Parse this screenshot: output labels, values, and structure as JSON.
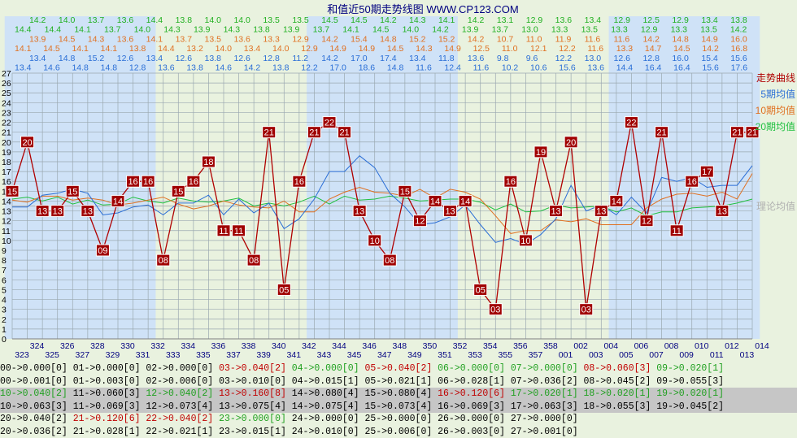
{
  "title": "和值近50期走势线图 WWW.CP123.COM",
  "legend": [
    {
      "label": "走势曲线",
      "color": "#b00000"
    },
    {
      "label": "5期均值",
      "color": "#2a6ed6"
    },
    {
      "label": "10期均值",
      "color": "#e07020"
    },
    {
      "label": "20期均值",
      "color": "#20c040"
    },
    {
      "label": "理论均值",
      "color": "#b0b0b0"
    }
  ],
  "header_rows": [
    {
      "color": "#20b020",
      "values": [
        "14.2",
        "14.0",
        "13.7",
        "13.6",
        "14.4",
        "13.8",
        "14.0",
        "14.0",
        "13.5",
        "13.5",
        "14.5",
        "14.5",
        "14.2",
        "14.3",
        "14.1",
        "14.2",
        "13.1",
        "12.9",
        "13.6",
        "13.4",
        "12.9",
        "12.5",
        "12.9",
        "13.4",
        "13.8"
      ]
    },
    {
      "color": "#20b020",
      "values": [
        "14.4",
        "14.4",
        "14.1",
        "13.7",
        "14.0",
        "14.3",
        "13.9",
        "14.3",
        "13.8",
        "13.9",
        "13.7",
        "14.1",
        "14.5",
        "14.0",
        "14.2",
        "13.9",
        "13.7",
        "13.0",
        "13.3",
        "13.5",
        "13.3",
        "12.9",
        "13.3",
        "13.5",
        "14.2"
      ]
    },
    {
      "color": "#e07020",
      "values": [
        "13.9",
        "14.5",
        "14.3",
        "13.6",
        "14.1",
        "13.7",
        "13.5",
        "13.6",
        "13.3",
        "12.9",
        "14.2",
        "15.4",
        "14.8",
        "15.2",
        "15.2",
        "14.2",
        "10.7",
        "11.0",
        "11.9",
        "11.6",
        "11.6",
        "14.2",
        "14.8",
        "14.9",
        "16.0"
      ]
    },
    {
      "color": "#e07020",
      "values": [
        "14.1",
        "14.5",
        "14.1",
        "14.1",
        "13.8",
        "14.4",
        "13.2",
        "14.0",
        "13.4",
        "14.0",
        "12.9",
        "14.9",
        "14.9",
        "14.5",
        "14.3",
        "14.9",
        "12.5",
        "11.0",
        "12.1",
        "12.2",
        "11.6",
        "13.3",
        "14.7",
        "14.5",
        "14.2",
        "16.8"
      ]
    },
    {
      "color": "#2a6ed6",
      "values": [
        "13.4",
        "14.8",
        "15.2",
        "12.6",
        "13.4",
        "12.6",
        "13.8",
        "12.6",
        "12.8",
        "11.2",
        "14.2",
        "17.0",
        "17.4",
        "13.4",
        "11.8",
        "13.6",
        "9.8",
        "9.6",
        "12.2",
        "13.0",
        "12.6",
        "12.8",
        "16.0",
        "15.4",
        "15.6"
      ]
    },
    {
      "color": "#2a6ed6",
      "values": [
        "13.4",
        "14.6",
        "14.8",
        "14.8",
        "12.8",
        "13.6",
        "13.8",
        "14.6",
        "14.2",
        "13.8",
        "12.2",
        "17.0",
        "18.6",
        "14.8",
        "11.6",
        "12.4",
        "11.6",
        "10.2",
        "10.6",
        "15.6",
        "13.6",
        "14.4",
        "16.4",
        "16.4",
        "15.6",
        "17.6"
      ]
    }
  ],
  "stats_rows": [
    {
      "band": false,
      "cells": [
        {
          "text": "00->0.000[0]",
          "color": "#000000"
        },
        {
          "text": "01->0.000[0]",
          "color": "#000000"
        },
        {
          "text": "02->0.000[0]",
          "color": "#000000"
        },
        {
          "text": "03->0.040[2]",
          "color": "#c00000"
        },
        {
          "text": "04->0.000[0]",
          "color": "#20a020"
        },
        {
          "text": "05->0.040[2]",
          "color": "#c00000"
        },
        {
          "text": "06->0.000[0]",
          "color": "#20a020"
        },
        {
          "text": "07->0.000[0]",
          "color": "#20a020"
        },
        {
          "text": "08->0.060[3]",
          "color": "#c00000"
        },
        {
          "text": "09->0.020[1]",
          "color": "#20a020"
        }
      ]
    },
    {
      "band": false,
      "cells": [
        {
          "text": "00->0.001[0]",
          "color": "#000000"
        },
        {
          "text": "01->0.003[0]",
          "color": "#000000"
        },
        {
          "text": "02->0.006[0]",
          "color": "#000000"
        },
        {
          "text": "03->0.010[0]",
          "color": "#000000"
        },
        {
          "text": "04->0.015[1]",
          "color": "#000000"
        },
        {
          "text": "05->0.021[1]",
          "color": "#000000"
        },
        {
          "text": "06->0.028[1]",
          "color": "#000000"
        },
        {
          "text": "07->0.036[2]",
          "color": "#000000"
        },
        {
          "text": "08->0.045[2]",
          "color": "#000000"
        },
        {
          "text": "09->0.055[3]",
          "color": "#000000"
        }
      ]
    },
    {
      "band": true,
      "cells": [
        {
          "text": "10->0.040[2]",
          "color": "#20a020"
        },
        {
          "text": "11->0.060[3]",
          "color": "#000000"
        },
        {
          "text": "12->0.040[2]",
          "color": "#20a020"
        },
        {
          "text": "13->0.160[8]",
          "color": "#c00000"
        },
        {
          "text": "14->0.080[4]",
          "color": "#000000"
        },
        {
          "text": "15->0.080[4]",
          "color": "#000000"
        },
        {
          "text": "16->0.120[6]",
          "color": "#c00000"
        },
        {
          "text": "17->0.020[1]",
          "color": "#20a020"
        },
        {
          "text": "18->0.020[1]",
          "color": "#20a020"
        },
        {
          "text": "19->0.020[1]",
          "color": "#20a020"
        }
      ]
    },
    {
      "band": true,
      "cells": [
        {
          "text": "10->0.063[3]",
          "color": "#000000"
        },
        {
          "text": "11->0.069[3]",
          "color": "#000000"
        },
        {
          "text": "12->0.073[4]",
          "color": "#000000"
        },
        {
          "text": "13->0.075[4]",
          "color": "#000000"
        },
        {
          "text": "14->0.075[4]",
          "color": "#000000"
        },
        {
          "text": "15->0.073[4]",
          "color": "#000000"
        },
        {
          "text": "16->0.069[3]",
          "color": "#000000"
        },
        {
          "text": "17->0.063[3]",
          "color": "#000000"
        },
        {
          "text": "18->0.055[3]",
          "color": "#000000"
        },
        {
          "text": "19->0.045[2]",
          "color": "#000000"
        }
      ]
    },
    {
      "band": false,
      "cells": [
        {
          "text": "20->0.040[2]",
          "color": "#000000"
        },
        {
          "text": "21->0.120[6]",
          "color": "#c00000"
        },
        {
          "text": "22->0.040[2]",
          "color": "#c00000"
        },
        {
          "text": "23->0.000[0]",
          "color": "#20a020"
        },
        {
          "text": "24->0.000[0]",
          "color": "#000000"
        },
        {
          "text": "25->0.000[0]",
          "color": "#000000"
        },
        {
          "text": "26->0.000[0]",
          "color": "#000000"
        },
        {
          "text": "27->0.000[0]",
          "color": "#000000"
        }
      ]
    },
    {
      "band": false,
      "cells": [
        {
          "text": "20->0.036[2]",
          "color": "#000000"
        },
        {
          "text": "21->0.028[1]",
          "color": "#000000"
        },
        {
          "text": "22->0.021[1]",
          "color": "#000000"
        },
        {
          "text": "23->0.015[1]",
          "color": "#000000"
        },
        {
          "text": "24->0.010[0]",
          "color": "#000000"
        },
        {
          "text": "25->0.006[0]",
          "color": "#000000"
        },
        {
          "text": "26->0.003[0]",
          "color": "#000000"
        },
        {
          "text": "27->0.001[0]",
          "color": "#000000"
        }
      ]
    }
  ],
  "chart_data": {
    "type": "line",
    "title": "和值近50期走势线图 WWW.CP123.COM",
    "x": [
      "323",
      "324",
      "325",
      "326",
      "327",
      "328",
      "329",
      "330",
      "331",
      "332",
      "333",
      "334",
      "335",
      "336",
      "337",
      "338",
      "339",
      "340",
      "341",
      "342",
      "343",
      "344",
      "345",
      "346",
      "347",
      "348",
      "349",
      "350",
      "351",
      "352",
      "353",
      "354",
      "355",
      "356",
      "357",
      "358",
      "001",
      "002",
      "003",
      "004",
      "005",
      "006",
      "007",
      "008",
      "009",
      "010",
      "011",
      "012",
      "013",
      "014"
    ],
    "ylim": [
      0,
      27
    ],
    "grid": true,
    "legend_position": "right",
    "series": [
      {
        "name": "走势曲线",
        "color": "#b00000",
        "values": [
          15,
          20,
          13,
          13,
          15,
          13,
          9,
          14,
          16,
          16,
          8,
          15,
          16,
          18,
          11,
          11,
          8,
          21,
          5,
          16,
          21,
          22,
          21,
          13,
          10,
          8,
          15,
          12,
          14,
          13,
          14,
          5,
          3,
          16,
          10,
          19,
          13,
          20,
          3,
          13,
          14,
          22,
          12,
          21,
          11,
          16,
          17,
          13,
          21,
          21
        ]
      },
      {
        "name": "5期均值",
        "color": "#2a6ed6",
        "values": [
          13.4,
          13.4,
          14.6,
          14.8,
          15.2,
          14.8,
          12.6,
          12.8,
          13.4,
          13.6,
          12.6,
          13.8,
          13.8,
          14.6,
          12.6,
          14.2,
          12.8,
          13.8,
          11.2,
          12.2,
          14.2,
          17.0,
          17.0,
          18.6,
          17.4,
          14.8,
          13.4,
          11.6,
          11.8,
          12.4,
          13.6,
          11.6,
          9.8,
          10.2,
          9.6,
          10.6,
          12.2,
          15.6,
          13.0,
          13.6,
          12.6,
          14.4,
          12.8,
          16.4,
          16.0,
          16.4,
          15.4,
          15.6,
          15.6,
          17.6
        ]
      },
      {
        "name": "10期均值",
        "color": "#e07020",
        "values": [
          14.1,
          13.9,
          14.5,
          14.5,
          14.1,
          14.3,
          14.1,
          13.6,
          13.8,
          14.1,
          14.4,
          13.7,
          13.2,
          13.5,
          14.0,
          13.6,
          13.4,
          13.3,
          14.0,
          12.9,
          12.9,
          14.2,
          14.9,
          15.4,
          14.9,
          14.8,
          14.5,
          15.2,
          14.3,
          15.2,
          14.9,
          14.2,
          12.5,
          10.7,
          11.0,
          11.0,
          12.1,
          11.9,
          12.2,
          11.6,
          11.6,
          11.6,
          13.3,
          14.2,
          14.7,
          14.8,
          14.5,
          14.9,
          14.2,
          16.8
        ]
      },
      {
        "name": "20期均值",
        "color": "#20c040",
        "values": [
          14.2,
          14.4,
          14.0,
          14.4,
          13.7,
          14.1,
          13.6,
          13.7,
          14.4,
          14.0,
          13.8,
          14.3,
          14.0,
          13.9,
          14.0,
          14.3,
          13.5,
          13.8,
          13.5,
          13.9,
          14.5,
          13.7,
          14.5,
          14.1,
          14.2,
          14.5,
          14.3,
          14.0,
          14.1,
          14.2,
          14.2,
          13.9,
          13.1,
          13.7,
          12.9,
          13.0,
          13.6,
          13.3,
          13.4,
          13.5,
          12.9,
          13.3,
          12.5,
          12.9,
          12.9,
          13.3,
          13.4,
          13.5,
          13.8,
          14.2
        ]
      },
      {
        "name": "理论均值",
        "color": "#b0b0b0",
        "values": [
          13.5,
          13.5,
          13.5,
          13.5,
          13.5,
          13.5,
          13.5,
          13.5,
          13.5,
          13.5,
          13.5,
          13.5,
          13.5,
          13.5,
          13.5,
          13.5,
          13.5,
          13.5,
          13.5,
          13.5,
          13.5,
          13.5,
          13.5,
          13.5,
          13.5,
          13.5,
          13.5,
          13.5,
          13.5,
          13.5,
          13.5,
          13.5,
          13.5,
          13.5,
          13.5,
          13.5,
          13.5,
          13.5,
          13.5,
          13.5,
          13.5,
          13.5,
          13.5,
          13.5,
          13.5,
          13.5,
          13.5,
          13.5,
          13.5,
          13.5
        ]
      }
    ]
  }
}
